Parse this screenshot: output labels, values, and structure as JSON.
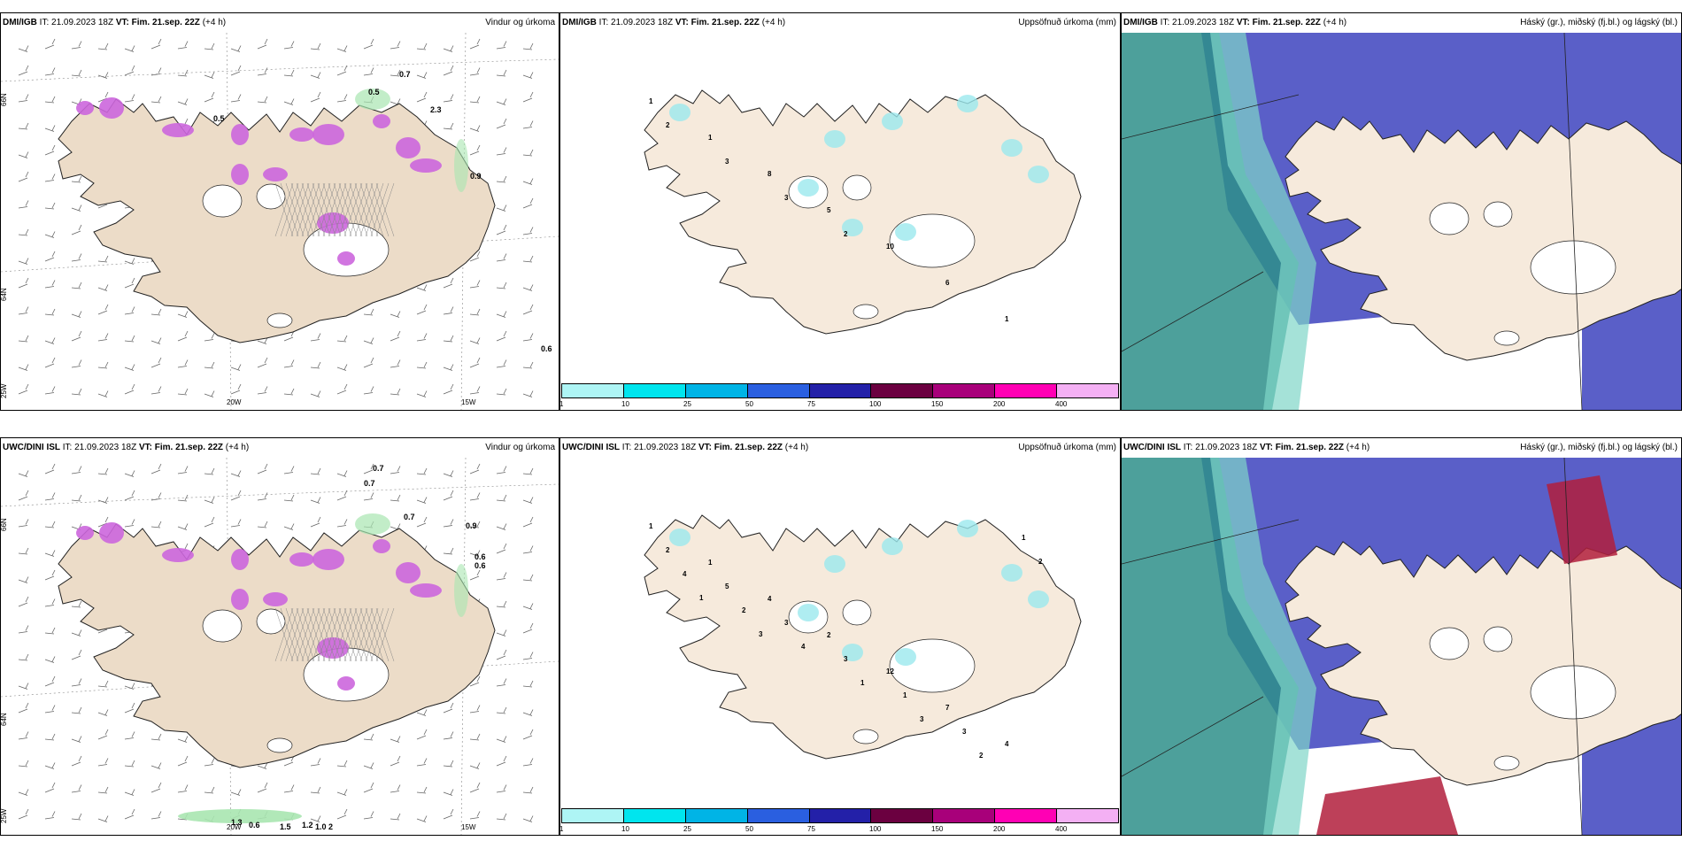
{
  "panels": [
    {
      "source": "DMI/IGB",
      "it": "IT: 21.09.2023 18Z",
      "vt_label": "VT: Fim. 21.sep. 22Z",
      "lead": "(+4 h)",
      "title": "Vindur og úrkoma"
    },
    {
      "source": "DMI/IGB",
      "it": "IT: 21.09.2023 18Z",
      "vt_label": "VT: Fim. 21.sep. 22Z",
      "lead": "(+4 h)",
      "title": "Uppsöfnuð úrkoma (mm)"
    },
    {
      "source": "DMI/IGB",
      "it": "IT: 21.09.2023 18Z",
      "vt_label": "VT: Fim. 21.sep. 22Z",
      "lead": "(+4 h)",
      "title": "Háský (gr.), miðský (fj.bl.) og lágský (bl.)"
    },
    {
      "source": "UWC/DINI ISL",
      "it": "IT: 21.09.2023 18Z",
      "vt_label": "VT: Fim. 21.sep. 22Z",
      "lead": "(+4 h)",
      "title": "Vindur og úrkoma"
    },
    {
      "source": "UWC/DINI ISL",
      "it": "IT: 21.09.2023 18Z",
      "vt_label": "VT: Fim. 21.sep. 22Z",
      "lead": "(+4 h)",
      "title": "Uppsöfnuð úrkoma (mm)"
    },
    {
      "source": "UWC/DINI ISL",
      "it": "IT: 21.09.2023 18Z",
      "vt_label": "VT: Fim. 21.sep. 22Z",
      "lead": "(+4 h)",
      "title": "Háský (gr.), miðský (fj.bl.) og lágský (bl.)"
    }
  ],
  "axis_labels": {
    "lon_20": "20W",
    "lon_15": "15W",
    "lat_66": "66N",
    "lat_64": "64N",
    "lon_25": "25W"
  },
  "colorbar": {
    "colors": [
      "#aef5f5",
      "#00e5ee",
      "#00b4e6",
      "#2a5fe0",
      "#2320a8",
      "#6b0040",
      "#a8007a",
      "#ff00b4",
      "#f4b0f4"
    ],
    "labels": [
      "1",
      "10",
      "25",
      "50",
      "75",
      "100",
      "150",
      "200",
      "400"
    ]
  },
  "wind_precip_values": {
    "dmi": [
      "0.7",
      "0.5",
      "0.5",
      "2.3",
      "0.9",
      "0.6"
    ],
    "uwc": [
      "0.7",
      "0.7",
      "0.7",
      "0.9",
      "0.6",
      "0.6",
      "1.3",
      "0.6",
      "1.5",
      "1.2",
      "1.0",
      "2"
    ]
  },
  "accum_values": {
    "dmi": [
      "1",
      "1",
      "8",
      "5",
      "10",
      "6",
      "1",
      "2",
      "3",
      "3",
      "2"
    ],
    "uwc": [
      "1",
      "1",
      "4",
      "2",
      "12",
      "7",
      "4",
      "2",
      "5",
      "3",
      "3",
      "1",
      "3",
      "1",
      "4",
      "2",
      "4",
      "1",
      "3",
      "2",
      "2",
      "1",
      "3"
    ]
  },
  "colors": {
    "land": "#f6eadc",
    "land_wind": "#ecdcc8",
    "coast": "#222222",
    "magenta": "#cc66dd",
    "green": "#a8e6b0",
    "highcloud": "#5a5fc8",
    "midcloud": "#2e8f8a",
    "lowcloud": "#7fd6c8",
    "redcloud": "#b21e3c"
  }
}
